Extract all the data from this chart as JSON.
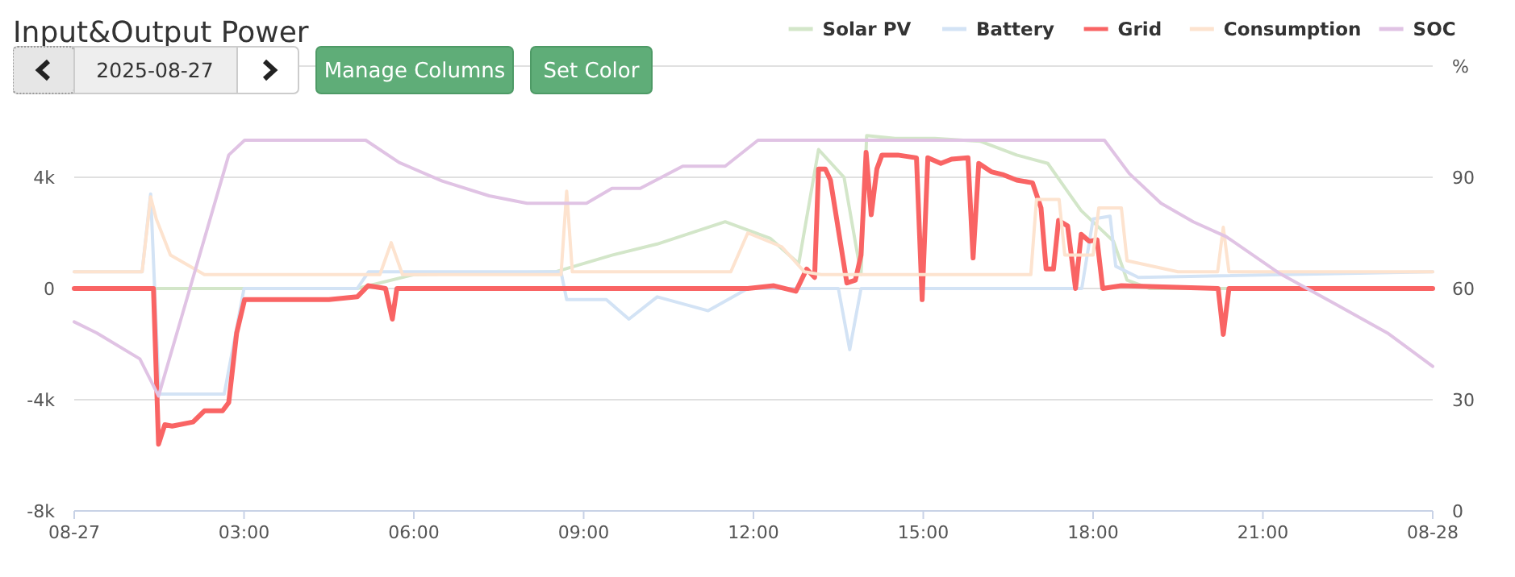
{
  "chart_data": {
    "type": "line",
    "title": "Input&Output Power",
    "y2label": "%",
    "annotations": [
      "2025-08-27",
      "Manage Columns",
      "Set Color"
    ],
    "legend": "top right",
    "grid": "y",
    "xlim": [
      0,
      24
    ],
    "xticks": [
      {
        "value": 0,
        "label": "08-27"
      },
      {
        "value": 3,
        "label": "03:00"
      },
      {
        "value": 6,
        "label": "06:00"
      },
      {
        "value": 9,
        "label": "09:00"
      },
      {
        "value": 12,
        "label": "12:00"
      },
      {
        "value": 15,
        "label": "15:00"
      },
      {
        "value": 18,
        "label": "18:00"
      },
      {
        "value": 21,
        "label": "21:00"
      },
      {
        "value": 24,
        "label": "08-28"
      }
    ],
    "ylim": [
      -8000,
      8000
    ],
    "yticks": [
      {
        "value": -8000,
        "label": "-8k"
      },
      {
        "value": -4000,
        "label": "-4k"
      },
      0,
      {
        "value": 4000,
        "label": "4k"
      },
      {
        "value": 8000,
        "label": null
      }
    ],
    "y2lim": [
      0,
      120
    ],
    "y2ticks": [
      0,
      30,
      60,
      90
    ],
    "series": [
      {
        "name": "Solar PV",
        "color": "#d3e6c9",
        "x": [
          0,
          5,
          6,
          8.5,
          9.5,
          10.3,
          11.5,
          12.3,
          12.8,
          13.15,
          13.6,
          13.9,
          14.0,
          14.5,
          15.0,
          15.2,
          16.0,
          16.65,
          17.2,
          17.58,
          17.79,
          18.36,
          18.6,
          19,
          24
        ],
        "values": [
          0,
          0,
          500,
          600,
          1200,
          1600,
          2400,
          1800,
          900,
          5000,
          4000,
          500,
          5500,
          5400,
          5400,
          5400,
          5300,
          4800,
          4500,
          3400,
          2800,
          1700,
          300,
          0,
          0
        ]
      },
      {
        "name": "Battery",
        "color": "#d3e3f5",
        "x": [
          0,
          1.2,
          1.35,
          1.5,
          2.65,
          3.0,
          5.0,
          5.2,
          8.6,
          8.7,
          9.4,
          9.8,
          10.3,
          11.2,
          11.9,
          13.5,
          13.7,
          13.9,
          17.8,
          18.0,
          18.3,
          18.4,
          18.8,
          24
        ],
        "values": [
          600,
          600,
          3400,
          -3800,
          -3800,
          0,
          0,
          600,
          600,
          -400,
          -400,
          -1100,
          -300,
          -800,
          0,
          0,
          -2200,
          0,
          0,
          2500,
          2600,
          800,
          400,
          600
        ]
      },
      {
        "name": "Grid",
        "color": "#f96464",
        "x": [
          0,
          1.4,
          1.49,
          1.6,
          1.73,
          2.1,
          2.3,
          2.62,
          2.73,
          2.87,
          3.01,
          3.5,
          4.5,
          5.0,
          5.19,
          5.5,
          5.62,
          5.7,
          8.0,
          11.9,
          12.36,
          12.75,
          12.94,
          13.08,
          13.15,
          13.27,
          13.36,
          13.65,
          13.8,
          13.9,
          13.99,
          14.08,
          14.18,
          14.27,
          14.55,
          14.88,
          14.98,
          15.08,
          15.31,
          15.5,
          15.79,
          15.88,
          15.98,
          16.2,
          16.4,
          16.65,
          16.93,
          17.08,
          17.17,
          17.3,
          17.39,
          17.55,
          17.69,
          17.79,
          17.93,
          18.07,
          18.17,
          18.5,
          20.21,
          20.3,
          20.4,
          24
        ],
        "values": [
          0,
          0,
          -5600,
          -4900,
          -4950,
          -4800,
          -4400,
          -4400,
          -4100,
          -1600,
          -400,
          -400,
          -400,
          -300,
          100,
          0,
          -1100,
          0,
          0,
          0,
          100,
          -100,
          700,
          400,
          4300,
          4300,
          3900,
          200,
          300,
          1200,
          4900,
          2650,
          4300,
          4800,
          4800,
          4700,
          -400,
          4700,
          4500,
          4650,
          4700,
          1100,
          4500,
          4200,
          4100,
          3900,
          3800,
          2900,
          700,
          700,
          2450,
          2250,
          0,
          1950,
          1700,
          1750,
          0,
          100,
          0,
          -1650,
          0,
          0
        ]
      },
      {
        "name": "Consumption",
        "color": "#fde3cf",
        "x": [
          0,
          1.2,
          1.35,
          1.45,
          1.7,
          2.3,
          5.4,
          5.6,
          5.8,
          8.6,
          8.7,
          8.8,
          11.6,
          11.9,
          12.5,
          12.9,
          13.2,
          16.9,
          17.0,
          17.4,
          17.5,
          18.0,
          18.1,
          18.5,
          18.6,
          19.5,
          20.2,
          20.3,
          20.4,
          24
        ],
        "values": [
          600,
          600,
          3300,
          2500,
          1200,
          500,
          500,
          1650,
          500,
          500,
          3500,
          600,
          600,
          2000,
          1500,
          600,
          500,
          500,
          3200,
          3200,
          1200,
          1200,
          2900,
          2900,
          1000,
          600,
          600,
          2200,
          600,
          600
        ]
      },
      {
        "name": "SOC",
        "color": "#e0c3e4",
        "axis": "y2",
        "x": [
          0,
          0.4,
          1.16,
          1.49,
          2.73,
          3.01,
          5.15,
          5.74,
          6.5,
          7.33,
          8.0,
          9.05,
          9.5,
          10.0,
          10.75,
          11.5,
          12.08,
          18.2,
          18.64,
          19.2,
          19.77,
          20.35,
          21.3,
          22.26,
          23.2,
          24
        ],
        "values": [
          51,
          48,
          41,
          31,
          96,
          100,
          100,
          94,
          89,
          85,
          83,
          83,
          87,
          87,
          93,
          93,
          100,
          100,
          91,
          83,
          78,
          74,
          64,
          56,
          48,
          39
        ]
      }
    ]
  }
}
